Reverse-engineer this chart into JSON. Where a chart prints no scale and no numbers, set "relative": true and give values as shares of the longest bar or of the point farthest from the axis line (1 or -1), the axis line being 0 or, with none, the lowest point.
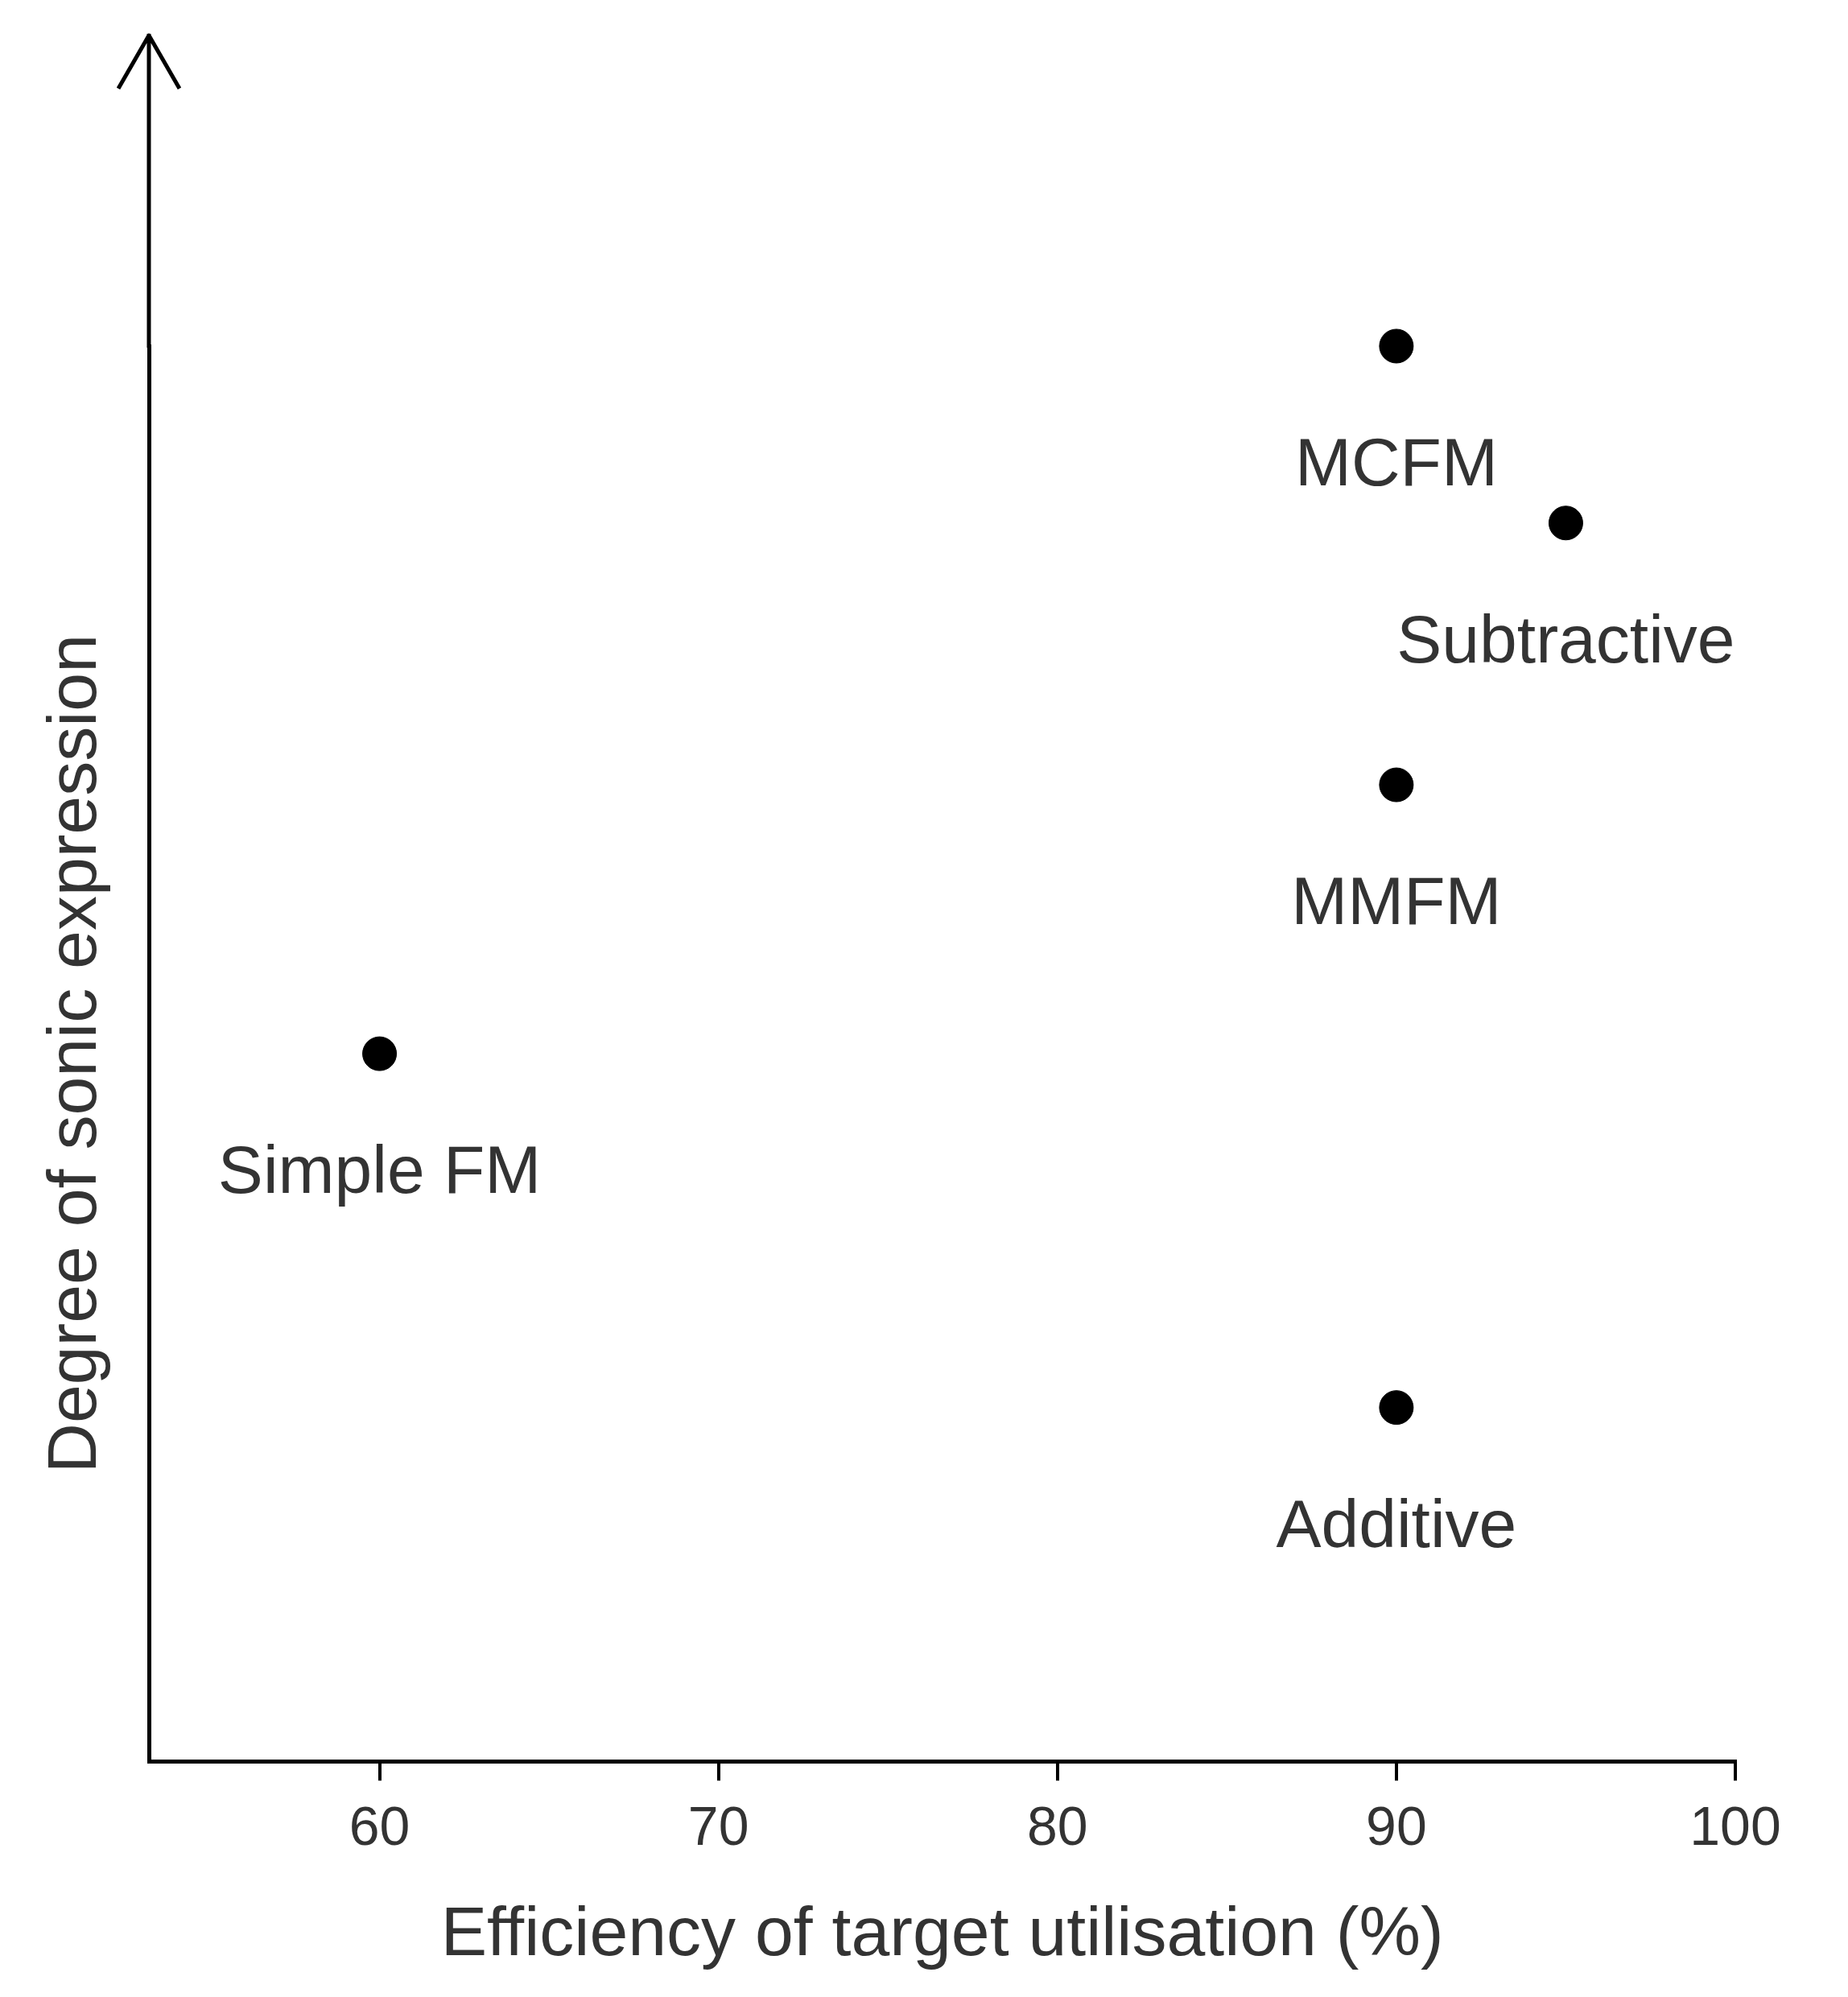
{
  "chart_data": {
    "type": "scatter",
    "xlabel": "Efficiency of target utilisation (%)",
    "ylabel": "Degree of sonic expression",
    "relative": true,
    "x": [
      90,
      95,
      90,
      60,
      90
    ],
    "values": [
      1,
      0.875,
      0.69,
      0.5,
      0.25
    ],
    "color": "#000000",
    "marker": "circle",
    "xlim": [
      53.2,
      100
    ],
    "xticks": [
      60,
      70,
      80,
      90,
      100
    ],
    "annotations": [
      {
        "text": "MCFM",
        "x": 90,
        "y": 1
      },
      {
        "text": "Subtractive",
        "x": 95,
        "y": 0.875
      },
      {
        "text": "MMFM",
        "x": 90,
        "y": 0.69
      },
      {
        "text": "Simple FM",
        "x": 60,
        "y": 0.5
      },
      {
        "text": "Additive",
        "x": 90,
        "y": 0.25
      }
    ]
  }
}
